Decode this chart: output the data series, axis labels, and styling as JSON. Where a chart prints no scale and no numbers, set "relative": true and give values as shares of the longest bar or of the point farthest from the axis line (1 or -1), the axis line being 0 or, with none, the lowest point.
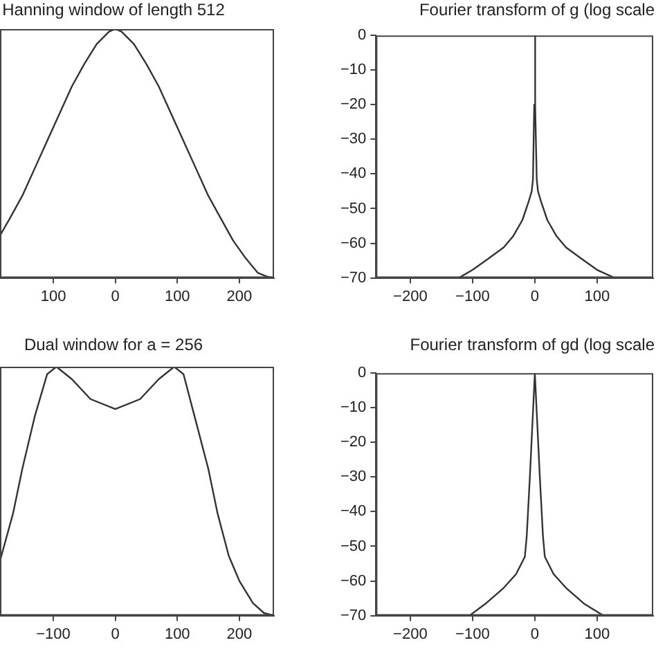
{
  "chart_data": [
    {
      "type": "line",
      "title": "Hanning window of length 512",
      "relative": true,
      "tick_labels": "x",
      "xlim": [
        -186,
        256
      ],
      "xticks": [
        {
          "value": -100,
          "label": "100"
        },
        0,
        100,
        200
      ],
      "grid": false,
      "legend": false,
      "marker": "none",
      "line_style": "solid",
      "series": [
        {
          "color": "#333333",
          "x": [
            -186,
            -170,
            -150,
            -130,
            -110,
            -90,
            -70,
            -50,
            -30,
            -10,
            0,
            10,
            30,
            50,
            70,
            90,
            110,
            130,
            150,
            170,
            190,
            210,
            230,
            245,
            256
          ],
          "values": [
            0.17,
            0.24,
            0.33,
            0.44,
            0.55,
            0.66,
            0.77,
            0.86,
            0.94,
            0.99,
            1,
            0.99,
            0.94,
            0.86,
            0.77,
            0.66,
            0.55,
            0.44,
            0.33,
            0.24,
            0.15,
            0.08,
            0.02,
            0.005,
            0
          ]
        }
      ]
    },
    {
      "type": "line",
      "title": "Fourier transform of g (log scale",
      "xlim": [
        -255,
        190
      ],
      "xticks": [
        -200,
        -100,
        0,
        100
      ],
      "ylim": [
        -70,
        0
      ],
      "yticks": [
        -70,
        -60,
        -50,
        -40,
        -30,
        -20,
        -10,
        0
      ],
      "grid": false,
      "legend": false,
      "marker": "none",
      "line_style": "solid",
      "series": [
        {
          "color": "#333333",
          "x": [
            -122,
            -100,
            -75,
            -50,
            -35,
            -20,
            -10,
            -5,
            -3,
            -1,
            0,
            1,
            3,
            5,
            10,
            20,
            35,
            50,
            75,
            100,
            128
          ],
          "values": [
            -70,
            -67.7,
            -64.5,
            -61.2,
            -58,
            -53.3,
            -48,
            -45,
            -41.5,
            -20,
            0,
            -20,
            -41.5,
            -45,
            -48,
            -53.3,
            -58,
            -61.2,
            -64.5,
            -67.7,
            -70
          ]
        }
      ]
    },
    {
      "type": "line",
      "title": "Dual window for a = 256",
      "relative": true,
      "tick_labels": "x",
      "xlim": [
        -186,
        256
      ],
      "xticks": [
        -100,
        0,
        100,
        200
      ],
      "grid": false,
      "legend": false,
      "marker": "none",
      "line_style": "solid",
      "series": [
        {
          "color": "#333333",
          "x": [
            -186,
            -165,
            -150,
            -130,
            -110,
            -95,
            -70,
            -40,
            0,
            40,
            70,
            95,
            110,
            130,
            150,
            165,
            183,
            200,
            222,
            240,
            256
          ],
          "values": [
            0.22,
            0.41,
            0.59,
            0.8,
            0.97,
            1,
            0.95,
            0.87,
            0.83,
            0.87,
            0.95,
            1,
            0.97,
            0.78,
            0.59,
            0.41,
            0.24,
            0.14,
            0.05,
            0.01,
            0
          ]
        }
      ]
    },
    {
      "type": "line",
      "title": "Fourier transform of gd (log scale",
      "xlim": [
        -255,
        190
      ],
      "xticks": [
        -200,
        -100,
        0,
        100
      ],
      "ylim": [
        -70,
        0
      ],
      "yticks": [
        -70,
        -60,
        -50,
        -40,
        -30,
        -20,
        -10,
        0
      ],
      "grid": false,
      "legend": false,
      "marker": "none",
      "line_style": "solid",
      "series": [
        {
          "color": "#333333",
          "x": [
            -105,
            -80,
            -50,
            -30,
            -16,
            -13,
            -8,
            -4,
            0,
            4,
            8,
            13,
            16,
            30,
            50,
            80,
            110
          ],
          "values": [
            -70,
            -66.7,
            -62,
            -58,
            -53,
            -47,
            -30,
            -15,
            0,
            -15,
            -30,
            -47,
            -53,
            -58,
            -62,
            -66.7,
            -70
          ]
        }
      ]
    }
  ]
}
